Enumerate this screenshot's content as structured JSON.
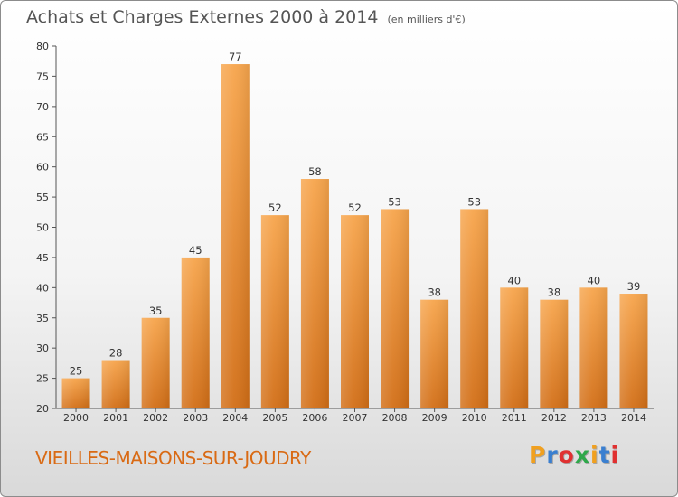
{
  "header": {
    "title": "Achats et Charges Externes 2000 à 2014",
    "unit": "(en milliers d'€)"
  },
  "footer": {
    "commune": "VIEILLES-MAISONS-SUR-JOUDRY",
    "logo_text": "Proxiti",
    "logo_colors": [
      "#f0a020",
      "#3a7fd0",
      "#e03030",
      "#2ea84a",
      "#f0a020",
      "#3a7fd0",
      "#e03030"
    ]
  },
  "colors": {
    "bar_top": "#f7a54c",
    "bar_bottom": "#d26e16",
    "accent": "#d96a14"
  },
  "chart_data": {
    "type": "bar",
    "title": "Achats et Charges Externes 2000 à 2014",
    "subtitle": "(en milliers d'€)",
    "categories": [
      "2000",
      "2001",
      "2002",
      "2003",
      "2004",
      "2005",
      "2006",
      "2007",
      "2008",
      "2009",
      "2010",
      "2011",
      "2012",
      "2013",
      "2014"
    ],
    "values": [
      25,
      28,
      35,
      45,
      77,
      52,
      58,
      52,
      53,
      38,
      53,
      40,
      38,
      40,
      39
    ],
    "data_labels": [
      "25",
      "28",
      "35",
      "45",
      "77",
      "52",
      "58",
      "52",
      "53",
      "38",
      "53",
      "40",
      "38",
      "40",
      "39"
    ],
    "ylim": [
      20,
      80
    ],
    "yticks": [
      20,
      25,
      30,
      35,
      40,
      45,
      50,
      55,
      60,
      65,
      70,
      75,
      80
    ],
    "xlabel": "",
    "ylabel": "",
    "grid": false,
    "legend": "none"
  }
}
